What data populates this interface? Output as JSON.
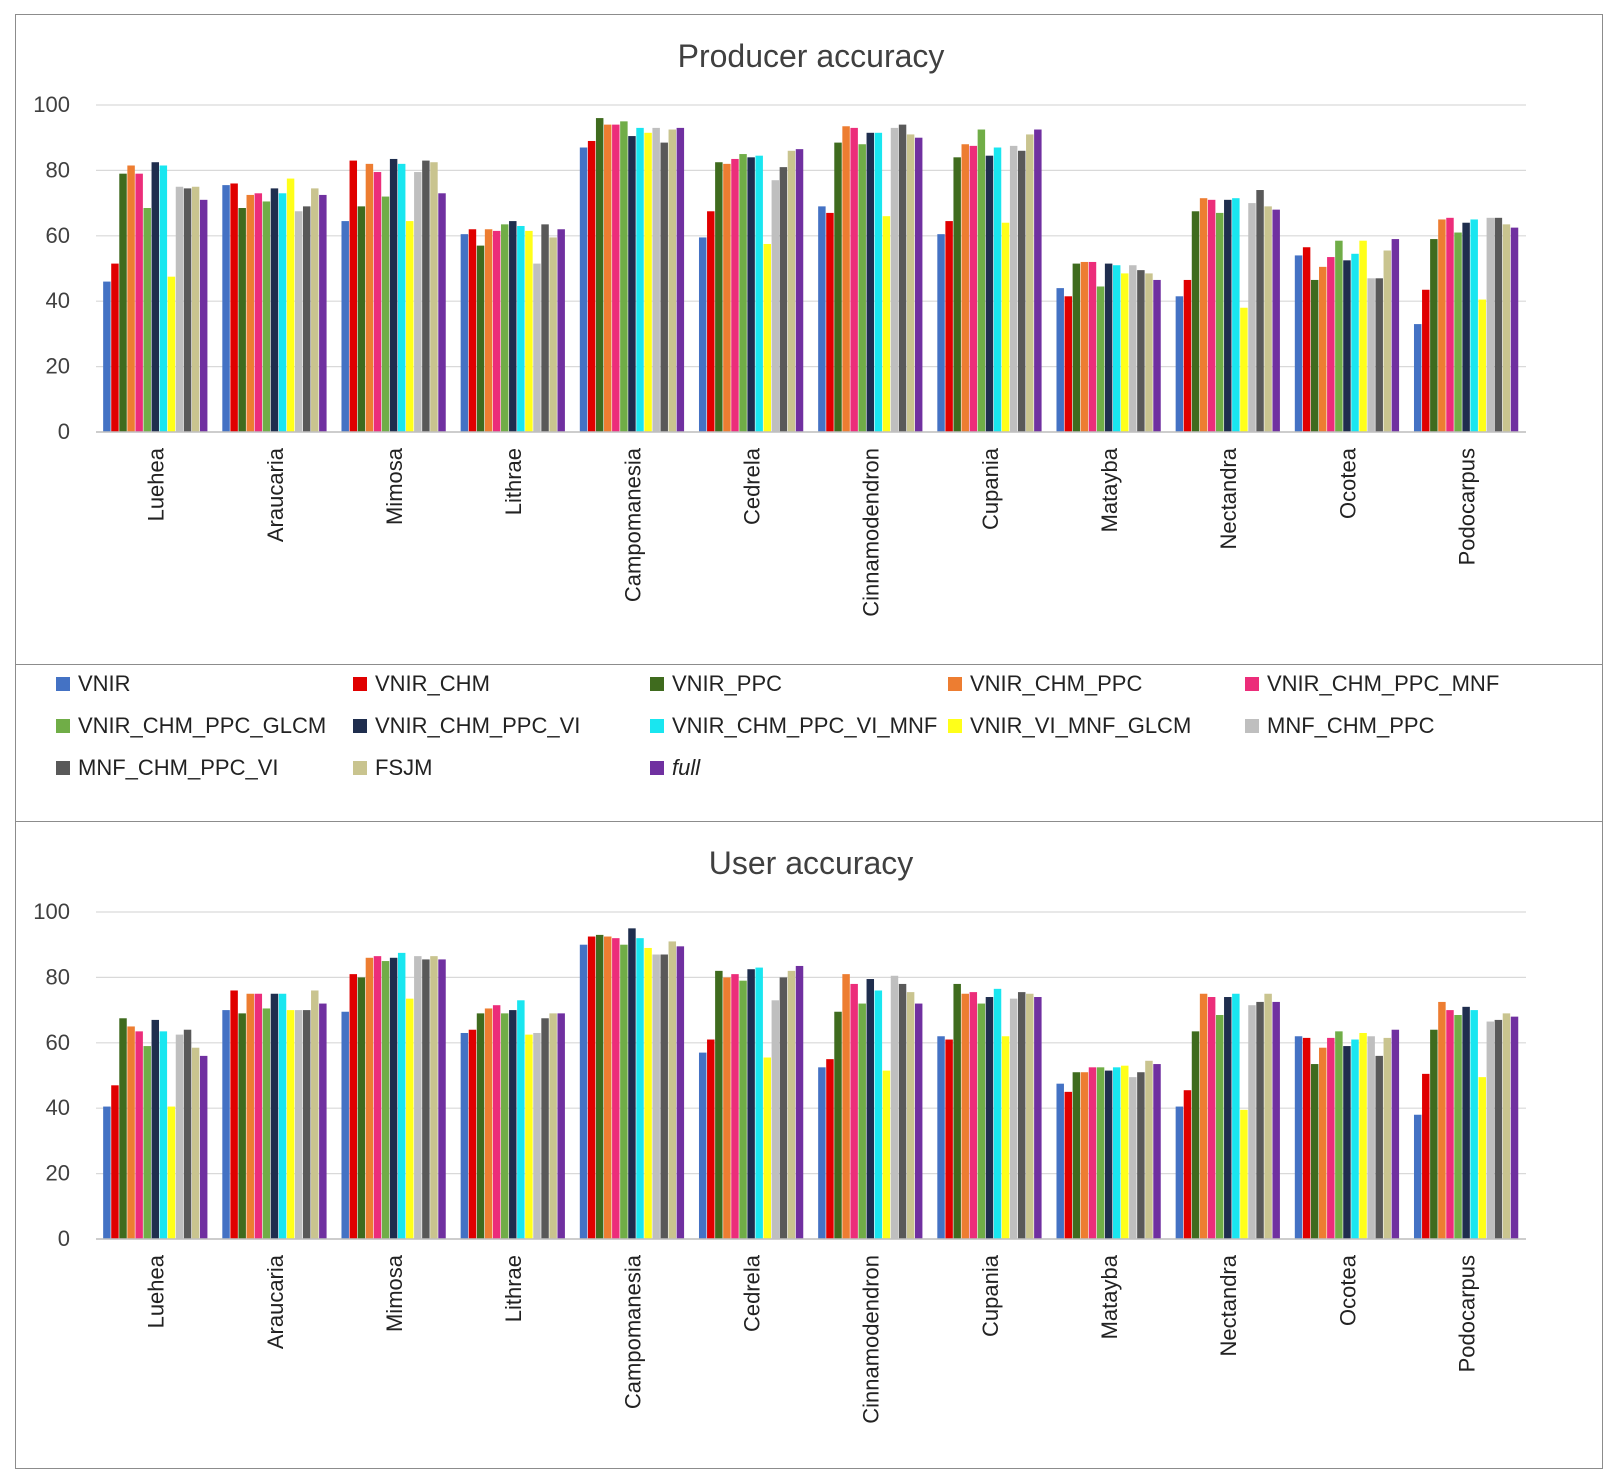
{
  "chart_data": [
    {
      "type": "bar",
      "title": "Producer accuracy",
      "xlabel": "",
      "ylabel": "",
      "ylim": [
        0,
        100
      ],
      "yticks": [
        0,
        20,
        40,
        60,
        80,
        100
      ],
      "grid": true,
      "categories": [
        "Luehea",
        "Araucaria",
        "Mimosa",
        "Lithrae",
        "Campomanesia",
        "Cedrela",
        "Cinnamodendron",
        "Cupania",
        "Matayba",
        "Nectandra",
        "Ocotea",
        "Podocarpus"
      ],
      "series": [
        {
          "name": "VNIR",
          "values": [
            46,
            75.5,
            64.5,
            60.5,
            87,
            59.5,
            69,
            60.5,
            44,
            41.5,
            54,
            33
          ]
        },
        {
          "name": "VNIR_CHM",
          "values": [
            51.5,
            76,
            83,
            62,
            89,
            67.5,
            67,
            64.5,
            41.5,
            46.5,
            56.5,
            43.5
          ]
        },
        {
          "name": "VNIR_PPC",
          "values": [
            79,
            68.5,
            69,
            57,
            96,
            82.5,
            88.5,
            84,
            51.5,
            67.5,
            46.5,
            59
          ]
        },
        {
          "name": "VNIR_CHM_PPC",
          "values": [
            81.5,
            72.5,
            82,
            62,
            94,
            82,
            93.5,
            88,
            52,
            71.5,
            50.5,
            65
          ]
        },
        {
          "name": "VNIR_CHM_PPC_MNF",
          "values": [
            79,
            73,
            79.5,
            61.5,
            94,
            83.5,
            93,
            87.5,
            52,
            71,
            53.5,
            65.5
          ]
        },
        {
          "name": "VNIR_CHM_PPC_GLCM",
          "values": [
            68.5,
            70.5,
            72,
            63.5,
            95,
            85,
            88,
            92.5,
            44.5,
            67,
            58.5,
            61
          ]
        },
        {
          "name": "VNIR_CHM_PPC_VI",
          "values": [
            82.5,
            74.5,
            83.5,
            64.5,
            90.5,
            84,
            91.5,
            84.5,
            51.5,
            71,
            52.5,
            64
          ]
        },
        {
          "name": "VNIR_CHM_PPC_VI_MNF",
          "values": [
            81.5,
            73,
            82,
            63,
            93,
            84.5,
            91.5,
            87,
            51,
            71.5,
            54.5,
            65
          ]
        },
        {
          "name": "VNIR_VI_MNF_GLCM",
          "values": [
            47.5,
            77.5,
            64.5,
            61.5,
            91.5,
            57.5,
            66,
            64,
            48.5,
            38,
            58.5,
            40.5
          ]
        },
        {
          "name": "MNF_CHM_PPC",
          "values": [
            75,
            67.5,
            79.5,
            51.5,
            93,
            77,
            93,
            87.5,
            51,
            70,
            47,
            65.5
          ]
        },
        {
          "name": "MNF_CHM_PPC_VI",
          "values": [
            74.5,
            69,
            83,
            63.5,
            88.5,
            81,
            94,
            86,
            49.5,
            74,
            47,
            65.5
          ]
        },
        {
          "name": "FSJM",
          "values": [
            75,
            74.5,
            82.5,
            59.5,
            92.5,
            86,
            91,
            91,
            48.5,
            69,
            55.5,
            63.5
          ]
        },
        {
          "name": "full",
          "values": [
            71,
            72.5,
            73,
            62,
            93,
            86.5,
            90,
            92.5,
            46.5,
            68,
            59,
            62.5
          ]
        }
      ]
    },
    {
      "type": "bar",
      "title": "User accuracy",
      "xlabel": "",
      "ylabel": "",
      "ylim": [
        0,
        100
      ],
      "yticks": [
        0,
        20,
        40,
        60,
        80,
        100
      ],
      "grid": true,
      "categories": [
        "Luehea",
        "Araucaria",
        "Mimosa",
        "Lithrae",
        "Campomanesia",
        "Cedrela",
        "Cinnamodendron",
        "Cupania",
        "Matayba",
        "Nectandra",
        "Ocotea",
        "Podocarpus"
      ],
      "series": [
        {
          "name": "VNIR",
          "values": [
            40.5,
            70,
            69.5,
            63,
            90,
            57,
            52.5,
            62,
            47.5,
            40.5,
            62,
            38
          ]
        },
        {
          "name": "VNIR_CHM",
          "values": [
            47,
            76,
            81,
            64,
            92.5,
            61,
            55,
            61,
            45,
            45.5,
            61.5,
            50.5
          ]
        },
        {
          "name": "VNIR_PPC",
          "values": [
            67.5,
            69,
            80,
            69,
            93,
            82,
            69.5,
            78,
            51,
            63.5,
            53.5,
            64
          ]
        },
        {
          "name": "VNIR_CHM_PPC",
          "values": [
            65,
            75,
            86,
            70.5,
            92.5,
            80,
            81,
            75,
            51,
            75,
            58.5,
            72.5
          ]
        },
        {
          "name": "VNIR_CHM_PPC_MNF",
          "values": [
            63.5,
            75,
            86.5,
            71.5,
            92,
            81,
            78,
            75.5,
            52.5,
            74,
            61.5,
            70
          ]
        },
        {
          "name": "VNIR_CHM_PPC_GLCM",
          "values": [
            59,
            70.5,
            85,
            69,
            90,
            79,
            72,
            72,
            52.5,
            68.5,
            63.5,
            68.5
          ]
        },
        {
          "name": "VNIR_CHM_PPC_VI",
          "values": [
            67,
            75,
            86,
            70,
            95,
            82.5,
            79.5,
            74,
            51.5,
            74,
            59,
            71
          ]
        },
        {
          "name": "VNIR_CHM_PPC_VI_MNF",
          "values": [
            63.5,
            75,
            87.5,
            73,
            92,
            83,
            76,
            76.5,
            52.5,
            75,
            61,
            70
          ]
        },
        {
          "name": "VNIR_VI_MNF_GLCM",
          "values": [
            40.5,
            70,
            73.5,
            62.5,
            89,
            55.5,
            51.5,
            62,
            53,
            39.5,
            63,
            49.5
          ]
        },
        {
          "name": "MNF_CHM_PPC",
          "values": [
            62.5,
            70,
            86.5,
            63,
            87,
            73,
            80.5,
            73.5,
            49.5,
            71.5,
            62,
            66.5
          ]
        },
        {
          "name": "MNF_CHM_PPC_VI",
          "values": [
            64,
            70,
            85.5,
            67.5,
            87,
            80,
            78,
            75.5,
            51,
            72.5,
            56,
            67
          ]
        },
        {
          "name": "FSJM",
          "values": [
            58.5,
            76,
            86.5,
            69,
            91,
            82,
            75.5,
            75,
            54.5,
            75,
            61.5,
            69
          ]
        },
        {
          "name": "full",
          "values": [
            56,
            72,
            85.5,
            69,
            89.5,
            83.5,
            72,
            74,
            53.5,
            72.5,
            64,
            68
          ]
        }
      ]
    }
  ],
  "legend": {
    "items": [
      {
        "label": "VNIR",
        "color": "#4472c4",
        "italic": false
      },
      {
        "label": "VNIR_CHM",
        "color": "#e00000",
        "italic": false
      },
      {
        "label": "VNIR_PPC",
        "color": "#3f6b1e",
        "italic": false
      },
      {
        "label": "VNIR_CHM_PPC",
        "color": "#ed7d31",
        "italic": false
      },
      {
        "label": "VNIR_CHM_PPC_MNF",
        "color": "#ec2d7a",
        "italic": false
      },
      {
        "label": "VNIR_CHM_PPC_GLCM",
        "color": "#70ad47",
        "italic": false
      },
      {
        "label": "VNIR_CHM_PPC_VI",
        "color": "#1f2e4e",
        "italic": false
      },
      {
        "label": "VNIR_CHM_PPC_VI_MNF",
        "color": "#19e6f0",
        "italic": false
      },
      {
        "label": "VNIR_VI_MNF_GLCM",
        "color": "#ffff19",
        "italic": false
      },
      {
        "label": "MNF_CHM_PPC",
        "color": "#bfbfbf",
        "italic": false
      },
      {
        "label": "MNF_CHM_PPC_VI",
        "color": "#595959",
        "italic": false
      },
      {
        "label": "FSJM",
        "color": "#c9c48f",
        "italic": false
      },
      {
        "label": "full",
        "color": "#7030a0",
        "italic": true
      }
    ]
  }
}
